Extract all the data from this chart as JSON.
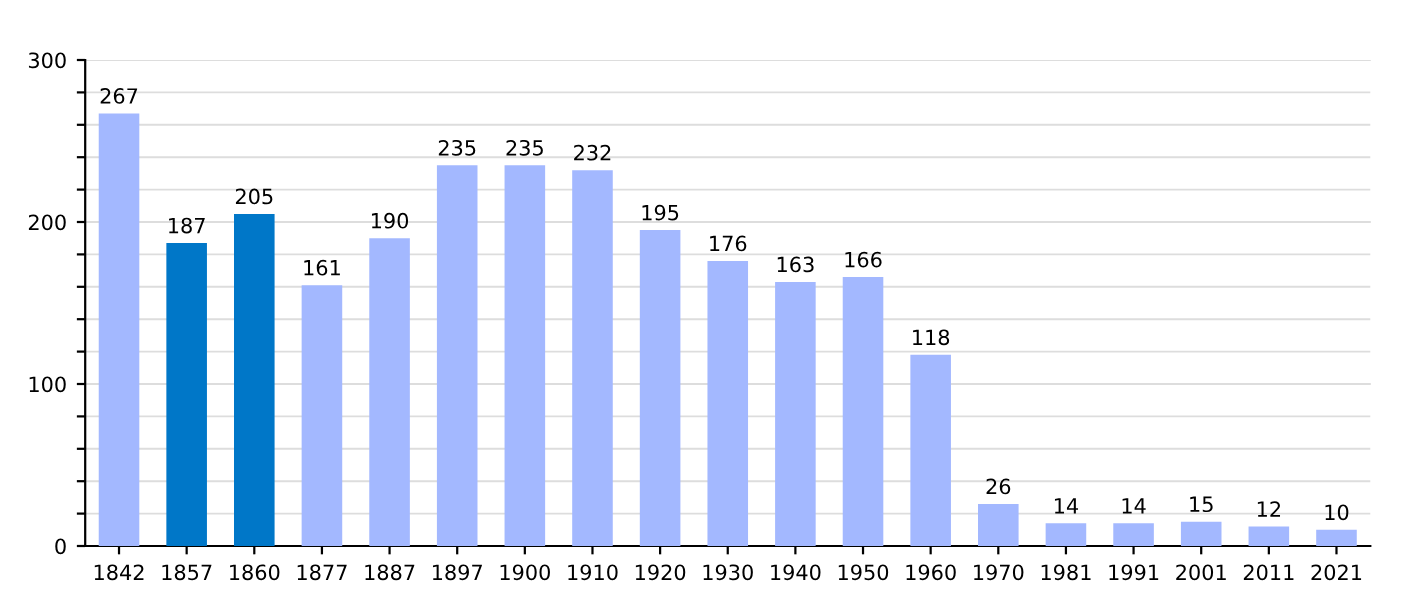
{
  "chart_data": {
    "type": "bar",
    "categories": [
      "1842",
      "1857",
      "1860",
      "1877",
      "1887",
      "1897",
      "1900",
      "1910",
      "1920",
      "1930",
      "1940",
      "1950",
      "1960",
      "1970",
      "1981",
      "1991",
      "2001",
      "2011",
      "2021"
    ],
    "values": [
      267,
      187,
      205,
      161,
      190,
      235,
      235,
      232,
      195,
      176,
      163,
      166,
      118,
      26,
      14,
      14,
      15,
      12,
      10
    ],
    "colors": [
      "#a3b8ff",
      "#0077c8",
      "#0077c8",
      "#a3b8ff",
      "#a3b8ff",
      "#a3b8ff",
      "#a3b8ff",
      "#a3b8ff",
      "#a3b8ff",
      "#a3b8ff",
      "#a3b8ff",
      "#a3b8ff",
      "#a3b8ff",
      "#a3b8ff",
      "#a3b8ff",
      "#a3b8ff",
      "#a3b8ff",
      "#a3b8ff",
      "#a3b8ff"
    ],
    "ylim": [
      0,
      300
    ],
    "yticks": [
      0,
      {
        "value": 20,
        "label": null
      },
      {
        "value": 40,
        "label": null
      },
      {
        "value": 60,
        "label": null
      },
      {
        "value": 80,
        "label": null
      },
      100,
      {
        "value": 120,
        "label": null
      },
      {
        "value": 140,
        "label": null
      },
      {
        "value": 160,
        "label": null
      },
      {
        "value": 180,
        "label": null
      },
      200,
      {
        "value": 220,
        "label": null
      },
      {
        "value": 240,
        "label": null
      },
      {
        "value": 260,
        "label": null
      },
      {
        "value": 280,
        "label": null
      },
      300
    ],
    "grid": "y",
    "data_labels": true
  }
}
